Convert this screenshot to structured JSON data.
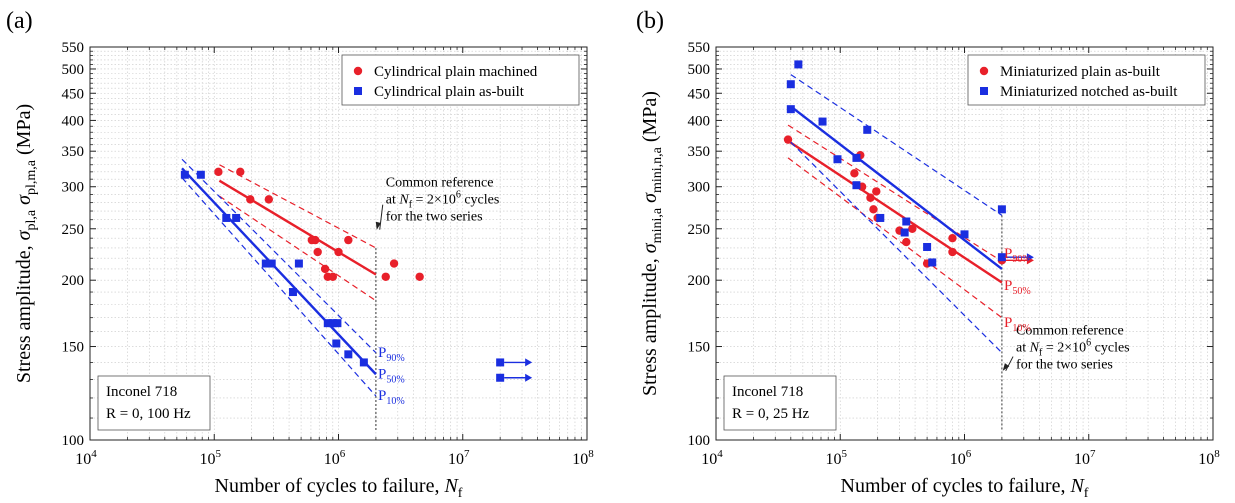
{
  "chart_data": [
    {
      "type": "scatter",
      "panel_label": "(a)",
      "xscale": "log",
      "yscale": "log",
      "xlim": [
        10000,
        100000000
      ],
      "ylim": [
        100,
        550
      ],
      "grid": true,
      "legend_position": "top-right",
      "xlabel": {
        "main": "Number of cycles to failure, ",
        "var": "N",
        "sub": "f"
      },
      "ylabel": {
        "main": "Stress amplitude, ",
        "parts": [
          {
            "sym": "σ",
            "sub": "pl,a"
          },
          {
            "sym": "σ",
            "sub": "pl,m,a"
          }
        ],
        "unit": " (MPa)"
      },
      "x_ticks": [
        {
          "base": "10",
          "exp": "4",
          "v": 10000
        },
        {
          "base": "10",
          "exp": "5",
          "v": 100000
        },
        {
          "base": "10",
          "exp": "6",
          "v": 1000000
        },
        {
          "base": "10",
          "exp": "7",
          "v": 10000000
        },
        {
          "base": "10",
          "exp": "8",
          "v": 100000000
        }
      ],
      "y_ticks": [
        {
          "label": "100",
          "v": 100
        },
        {
          "label": "150",
          "v": 150
        },
        {
          "label": "200",
          "v": 200
        },
        {
          "label": "250",
          "v": 250
        },
        {
          "label": "300",
          "v": 300
        },
        {
          "label": "350",
          "v": 350
        },
        {
          "label": "400",
          "v": 400
        },
        {
          "label": "450",
          "v": 450
        },
        {
          "label": "500",
          "v": 500
        },
        {
          "label": "550",
          "v": 550
        }
      ],
      "series": [
        {
          "name": "Cylindrical plain machined",
          "marker": "circle",
          "color": "#e8202a",
          "points": [
            [
              108000,
              320
            ],
            [
              162000,
              320
            ],
            [
              195000,
              284
            ],
            [
              275000,
              284
            ],
            [
              610000,
              238
            ],
            [
              650000,
              238
            ],
            [
              680000,
              226
            ],
            [
              780000,
              210
            ],
            [
              820000,
              203
            ],
            [
              900000,
              203
            ],
            [
              1000000,
              226
            ],
            [
              1200000,
              238
            ],
            [
              2400000,
              203
            ],
            [
              2800000,
              215
            ],
            [
              4500000,
              203
            ]
          ],
          "fit": {
            "x": [
              110000,
              2000000
            ],
            "y": [
              308,
              205
            ]
          },
          "bounds": [
            {
              "x": [
                110000,
                2000000
              ],
              "y": [
                330,
                230
              ]
            },
            {
              "x": [
                110000,
                2000000
              ],
              "y": [
                288,
                183
              ]
            }
          ],
          "runouts": []
        },
        {
          "name": "Cylindrical plain as-built",
          "marker": "square",
          "color": "#1a2ee0",
          "points": [
            [
              58000,
              316
            ],
            [
              78000,
              316
            ],
            [
              125000,
              262
            ],
            [
              150000,
              262
            ],
            [
              260000,
              215
            ],
            [
              290000,
              215
            ],
            [
              480000,
              215
            ],
            [
              430000,
              190
            ],
            [
              820000,
              166
            ],
            [
              900000,
              166
            ],
            [
              980000,
              166
            ],
            [
              960000,
              152
            ],
            [
              1200000,
              145
            ],
            [
              1600000,
              140
            ]
          ],
          "fit": {
            "x": [
              55000,
              2000000
            ],
            "y": [
              325,
              133
            ]
          },
          "bounds": [
            {
              "x": [
                55000,
                2000000
              ],
              "y": [
                338,
                146
              ]
            },
            {
              "x": [
                55000,
                2000000
              ],
              "y": [
                312,
                121
              ]
            }
          ],
          "runouts": [
            [
              20000000,
              140
            ],
            [
              20000000,
              131
            ]
          ]
        }
      ],
      "band_labels": [
        {
          "base": "P",
          "sub": "90%",
          "color": "#1a2ee0",
          "at": [
            2080000,
            146
          ]
        },
        {
          "base": "P",
          "sub": "50%",
          "color": "#1a2ee0",
          "at": [
            2080000,
            133
          ]
        },
        {
          "base": "P",
          "sub": "10%",
          "color": "#1a2ee0",
          "at": [
            2080000,
            121
          ]
        }
      ],
      "reference": {
        "x": 2000000,
        "lines": [
          "Common reference",
          {
            "pre": "at ",
            "var": "N",
            "sub": "f",
            "post": " = 2×10",
            "sup": "6",
            "tail": " cycles"
          },
          "for the two series"
        ],
        "text_at": [
          2400000,
          300
        ],
        "arrow_to": [
          2030000,
          249
        ]
      },
      "info_box": [
        "Inconel 718",
        "R = 0, 100 Hz"
      ]
    },
    {
      "type": "scatter",
      "panel_label": "(b)",
      "xscale": "log",
      "yscale": "log",
      "xlim": [
        10000,
        100000000
      ],
      "ylim": [
        100,
        550
      ],
      "grid": true,
      "legend_position": "top-right",
      "xlabel": {
        "main": "Number of cycles to failure, ",
        "var": "N",
        "sub": "f"
      },
      "ylabel": {
        "main": "Stress amplitude, ",
        "parts": [
          {
            "sym": "σ",
            "sub": "mini,a"
          },
          {
            "sym": "σ",
            "sub": "mini,n,a"
          }
        ],
        "unit": " (MPa)"
      },
      "x_ticks": [
        {
          "base": "10",
          "exp": "4",
          "v": 10000
        },
        {
          "base": "10",
          "exp": "5",
          "v": 100000
        },
        {
          "base": "10",
          "exp": "6",
          "v": 1000000
        },
        {
          "base": "10",
          "exp": "7",
          "v": 10000000
        },
        {
          "base": "10",
          "exp": "8",
          "v": 100000000
        }
      ],
      "y_ticks": [
        {
          "label": "100",
          "v": 100
        },
        {
          "label": "150",
          "v": 150
        },
        {
          "label": "200",
          "v": 200
        },
        {
          "label": "250",
          "v": 250
        },
        {
          "label": "300",
          "v": 300
        },
        {
          "label": "350",
          "v": 350
        },
        {
          "label": "400",
          "v": 400
        },
        {
          "label": "450",
          "v": 450
        },
        {
          "label": "500",
          "v": 500
        },
        {
          "label": "550",
          "v": 550
        }
      ],
      "series": [
        {
          "name": "Miniaturized plain as-built",
          "marker": "circle",
          "color": "#e8202a",
          "points": [
            [
              38000,
              368
            ],
            [
              130000,
              318
            ],
            [
              145000,
              344
            ],
            [
              150000,
              300
            ],
            [
              175000,
              286
            ],
            [
              185000,
              272
            ],
            [
              195000,
              294
            ],
            [
              200000,
              262
            ],
            [
              300000,
              248
            ],
            [
              340000,
              236
            ],
            [
              380000,
              250
            ],
            [
              500000,
              215
            ],
            [
              800000,
              226
            ],
            [
              800000,
              240
            ],
            [
              2000000,
              218
            ]
          ],
          "fit": {
            "x": [
              38000,
              2000000
            ],
            "y": [
              366,
              198
            ]
          },
          "bounds": [
            {
              "x": [
                38000,
                2000000
              ],
              "y": [
                392,
                217
              ]
            },
            {
              "x": [
                38000,
                2000000
              ],
              "y": [
                340,
                170
              ]
            }
          ],
          "runouts": [
            [
              2000000,
              218
            ]
          ]
        },
        {
          "name": "Miniaturized notched as-built",
          "marker": "square",
          "color": "#1a2ee0",
          "points": [
            [
              46000,
              510
            ],
            [
              40000,
              468
            ],
            [
              40000,
              420
            ],
            [
              72000,
              398
            ],
            [
              95000,
              338
            ],
            [
              135000,
              340
            ],
            [
              135000,
              302
            ],
            [
              165000,
              384
            ],
            [
              210000,
              262
            ],
            [
              330000,
              246
            ],
            [
              340000,
              258
            ],
            [
              500000,
              231
            ],
            [
              550000,
              216
            ],
            [
              1000000,
              244
            ],
            [
              2000000,
              272
            ],
            [
              2000000,
              221
            ]
          ],
          "fit": {
            "x": [
              40000,
              2000000
            ],
            "y": [
              425,
              210
            ]
          },
          "bounds": [
            {
              "x": [
                40000,
                2000000
              ],
              "y": [
                488,
                265
              ]
            },
            {
              "x": [
                40000,
                2000000
              ],
              "y": [
                364,
                146
              ]
            }
          ],
          "runouts": [
            [
              2000000,
              221
            ]
          ]
        }
      ],
      "band_labels": [
        {
          "base": "P",
          "sub": "90%",
          "color": "#e8202a",
          "at": [
            2080000,
            224
          ]
        },
        {
          "base": "P",
          "sub": "50%",
          "color": "#e8202a",
          "at": [
            2080000,
            195
          ]
        },
        {
          "base": "P",
          "sub": "10%",
          "color": "#e8202a",
          "at": [
            2080000,
            166
          ]
        }
      ],
      "reference": {
        "x": 2000000,
        "lines": [
          "Common reference",
          {
            "pre": "at ",
            "var": "N",
            "sub": "f",
            "post": " = 2×10",
            "sup": "6",
            "tail": " cycles"
          },
          "for the two series"
        ],
        "text_at": [
          2600000,
          158
        ],
        "arrow_to": [
          2030000,
          135
        ]
      },
      "info_box": [
        "Inconel 718",
        "R = 0, 25 Hz"
      ]
    }
  ]
}
